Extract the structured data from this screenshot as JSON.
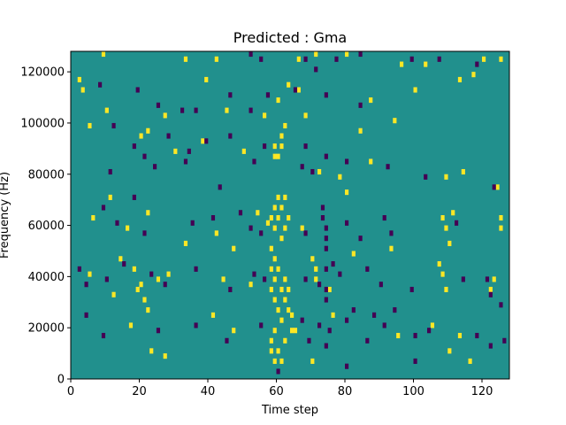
{
  "chart_data": {
    "type": "heatmap",
    "title": "Predicted : Gma",
    "xlabel": "Time step",
    "ylabel": "Frequency (Hz)",
    "xlim": [
      0,
      128
    ],
    "ylim": [
      0,
      128000
    ],
    "xticks": [
      0,
      20,
      40,
      60,
      80,
      100,
      120
    ],
    "yticks": [
      0,
      20000,
      40000,
      60000,
      80000,
      100000,
      120000
    ],
    "n_time_steps": 128,
    "n_frequency_bins": 64,
    "colors": {
      "background": "#21908d",
      "high": "#fde725",
      "low": "#440154"
    },
    "cells": {
      "high": [
        [
          9,
          126000
        ],
        [
          33,
          124000
        ],
        [
          42,
          124000
        ],
        [
          66,
          124000
        ],
        [
          71,
          126000
        ],
        [
          80,
          126000
        ],
        [
          96,
          122000
        ],
        [
          103,
          122000
        ],
        [
          120,
          124000
        ],
        [
          125,
          124000
        ],
        [
          2,
          116000
        ],
        [
          3,
          112000
        ],
        [
          39,
          116000
        ],
        [
          60,
          108000
        ],
        [
          63,
          114000
        ],
        [
          66,
          112000
        ],
        [
          100,
          112000
        ],
        [
          113,
          116000
        ],
        [
          117,
          118000
        ],
        [
          5,
          98000
        ],
        [
          10,
          104000
        ],
        [
          27,
          102000
        ],
        [
          45,
          104000
        ],
        [
          56,
          102000
        ],
        [
          62,
          98000
        ],
        [
          68,
          102000
        ],
        [
          84,
          96000
        ],
        [
          87,
          108000
        ],
        [
          94,
          100000
        ],
        [
          20,
          94000
        ],
        [
          22,
          96000
        ],
        [
          30,
          88000
        ],
        [
          38,
          92000
        ],
        [
          50,
          88000
        ],
        [
          59,
          90000
        ],
        [
          59,
          86000
        ],
        [
          60,
          86000
        ],
        [
          61,
          94000
        ],
        [
          61,
          90000
        ],
        [
          72,
          80000
        ],
        [
          78,
          78000
        ],
        [
          80,
          72000
        ],
        [
          87,
          84000
        ],
        [
          109,
          78000
        ],
        [
          114,
          80000
        ],
        [
          124,
          74000
        ],
        [
          6,
          62000
        ],
        [
          11,
          70000
        ],
        [
          16,
          58000
        ],
        [
          22,
          64000
        ],
        [
          33,
          52000
        ],
        [
          42,
          56000
        ],
        [
          47,
          50000
        ],
        [
          54,
          64000
        ],
        [
          57,
          60000
        ],
        [
          58,
          62000
        ],
        [
          59,
          66000
        ],
        [
          59,
          58000
        ],
        [
          60,
          70000
        ],
        [
          60,
          62000
        ],
        [
          61,
          66000
        ],
        [
          61,
          54000
        ],
        [
          62,
          70000
        ],
        [
          62,
          58000
        ],
        [
          63,
          62000
        ],
        [
          67,
          58000
        ],
        [
          70,
          46000
        ],
        [
          71,
          42000
        ],
        [
          82,
          48000
        ],
        [
          93,
          50000
        ],
        [
          108,
          62000
        ],
        [
          109,
          58000
        ],
        [
          110,
          52000
        ],
        [
          111,
          64000
        ],
        [
          125,
          58000
        ],
        [
          125,
          62000
        ],
        [
          5,
          40000
        ],
        [
          12,
          32000
        ],
        [
          14,
          46000
        ],
        [
          18,
          42000
        ],
        [
          19,
          34000
        ],
        [
          20,
          36000
        ],
        [
          21,
          30000
        ],
        [
          22,
          26000
        ],
        [
          25,
          38000
        ],
        [
          28,
          40000
        ],
        [
          44,
          38000
        ],
        [
          52,
          36000
        ],
        [
          58,
          50000
        ],
        [
          58,
          42000
        ],
        [
          58,
          34000
        ],
        [
          59,
          46000
        ],
        [
          59,
          38000
        ],
        [
          59,
          30000
        ],
        [
          60,
          26000
        ],
        [
          60,
          42000
        ],
        [
          61,
          34000
        ],
        [
          61,
          22000
        ],
        [
          62,
          38000
        ],
        [
          62,
          30000
        ],
        [
          63,
          26000
        ],
        [
          63,
          34000
        ],
        [
          64,
          18000
        ],
        [
          71,
          38000
        ],
        [
          75,
          34000
        ],
        [
          107,
          44000
        ],
        [
          108,
          40000
        ],
        [
          109,
          34000
        ],
        [
          122,
          34000
        ],
        [
          123,
          38000
        ],
        [
          17,
          20000
        ],
        [
          23,
          10000
        ],
        [
          27,
          8000
        ],
        [
          41,
          24000
        ],
        [
          47,
          18000
        ],
        [
          58,
          14000
        ],
        [
          58,
          10000
        ],
        [
          59,
          6000
        ],
        [
          59,
          18000
        ],
        [
          60,
          10000
        ],
        [
          61,
          6000
        ],
        [
          62,
          14000
        ],
        [
          64,
          24000
        ],
        [
          65,
          18000
        ],
        [
          70,
          6000
        ],
        [
          76,
          24000
        ],
        [
          95,
          16000
        ],
        [
          105,
          20000
        ],
        [
          110,
          10000
        ],
        [
          113,
          16000
        ],
        [
          116,
          6000
        ]
      ],
      "low": [
        [
          52,
          126000
        ],
        [
          55,
          124000
        ],
        [
          68,
          124000
        ],
        [
          71,
          120000
        ],
        [
          77,
          124000
        ],
        [
          84,
          126000
        ],
        [
          99,
          124000
        ],
        [
          107,
          124000
        ],
        [
          118,
          122000
        ],
        [
          8,
          114000
        ],
        [
          19,
          112000
        ],
        [
          25,
          106000
        ],
        [
          32,
          104000
        ],
        [
          36,
          104000
        ],
        [
          46,
          110000
        ],
        [
          52,
          104000
        ],
        [
          57,
          110000
        ],
        [
          65,
          112000
        ],
        [
          74,
          110000
        ],
        [
          84,
          106000
        ],
        [
          12,
          98000
        ],
        [
          18,
          90000
        ],
        [
          21,
          86000
        ],
        [
          28,
          94000
        ],
        [
          34,
          88000
        ],
        [
          39,
          92000
        ],
        [
          46,
          94000
        ],
        [
          53,
          84000
        ],
        [
          56,
          90000
        ],
        [
          68,
          90000
        ],
        [
          11,
          80000
        ],
        [
          24,
          82000
        ],
        [
          33,
          84000
        ],
        [
          43,
          74000
        ],
        [
          67,
          82000
        ],
        [
          70,
          80000
        ],
        [
          74,
          86000
        ],
        [
          80,
          84000
        ],
        [
          92,
          82000
        ],
        [
          103,
          78000
        ],
        [
          123,
          74000
        ],
        [
          9,
          66000
        ],
        [
          13,
          60000
        ],
        [
          18,
          70000
        ],
        [
          21,
          56000
        ],
        [
          35,
          60000
        ],
        [
          41,
          62000
        ],
        [
          49,
          64000
        ],
        [
          52,
          58000
        ],
        [
          55,
          56000
        ],
        [
          68,
          56000
        ],
        [
          73,
          66000
        ],
        [
          73,
          62000
        ],
        [
          74,
          58000
        ],
        [
          74,
          54000
        ],
        [
          74,
          50000
        ],
        [
          80,
          60000
        ],
        [
          84,
          54000
        ],
        [
          91,
          62000
        ],
        [
          93,
          56000
        ],
        [
          112,
          60000
        ],
        [
          2,
          42000
        ],
        [
          4,
          36000
        ],
        [
          10,
          38000
        ],
        [
          15,
          44000
        ],
        [
          23,
          40000
        ],
        [
          27,
          36000
        ],
        [
          36,
          42000
        ],
        [
          46,
          34000
        ],
        [
          53,
          40000
        ],
        [
          56,
          38000
        ],
        [
          68,
          38000
        ],
        [
          72,
          36000
        ],
        [
          74,
          42000
        ],
        [
          74,
          34000
        ],
        [
          74,
          30000
        ],
        [
          76,
          44000
        ],
        [
          78,
          40000
        ],
        [
          86,
          42000
        ],
        [
          90,
          36000
        ],
        [
          99,
          34000
        ],
        [
          114,
          38000
        ],
        [
          121,
          38000
        ],
        [
          122,
          32000
        ],
        [
          125,
          28000
        ],
        [
          4,
          24000
        ],
        [
          9,
          16000
        ],
        [
          25,
          18000
        ],
        [
          36,
          20000
        ],
        [
          45,
          14000
        ],
        [
          55,
          20000
        ],
        [
          67,
          22000
        ],
        [
          69,
          14000
        ],
        [
          72,
          20000
        ],
        [
          74,
          12000
        ],
        [
          75,
          18000
        ],
        [
          80,
          22000
        ],
        [
          82,
          26000
        ],
        [
          86,
          14000
        ],
        [
          88,
          24000
        ],
        [
          91,
          20000
        ],
        [
          94,
          26000
        ],
        [
          100,
          16000
        ],
        [
          104,
          18000
        ],
        [
          118,
          16000
        ],
        [
          122,
          12000
        ],
        [
          126,
          14000
        ],
        [
          60,
          2000
        ],
        [
          80,
          4000
        ],
        [
          100,
          6000
        ]
      ]
    }
  }
}
